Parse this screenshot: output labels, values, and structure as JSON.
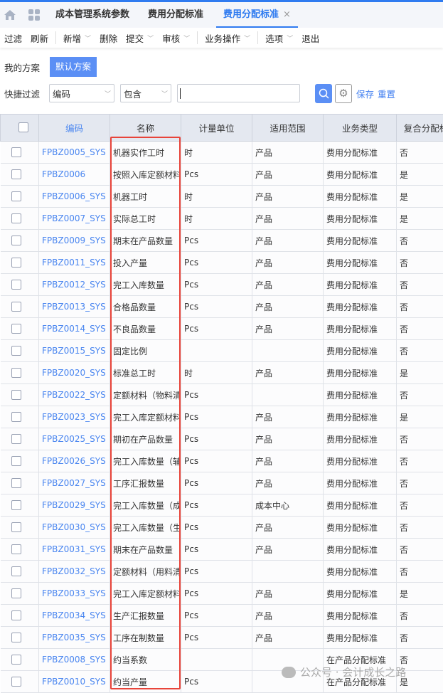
{
  "tabs": [
    {
      "label": "成本管理系统参数"
    },
    {
      "label": "费用分配标准"
    },
    {
      "label": "费用分配标准",
      "active": true,
      "close": "×"
    }
  ],
  "toolbar": [
    {
      "label": "过滤"
    },
    {
      "label": "刷新",
      "sep": true
    },
    {
      "label": "新增",
      "dropdown": true
    },
    {
      "label": "删除"
    },
    {
      "label": "提交",
      "dropdown": true
    },
    {
      "label": "审核",
      "dropdown": true,
      "sep": true
    },
    {
      "label": "业务操作",
      "dropdown": true,
      "sep": true
    },
    {
      "label": "选项",
      "dropdown": true
    },
    {
      "label": "退出"
    }
  ],
  "scheme": {
    "label": "我的方案",
    "default_button": "默认方案"
  },
  "filter": {
    "label": "快捷过滤",
    "field": "编码",
    "operator": "包含",
    "value": "",
    "save": "保存",
    "reset": "重置"
  },
  "table": {
    "headers": [
      "编码",
      "名称",
      "计量单位",
      "适用范围",
      "业务类型",
      "复合分配标"
    ],
    "rows": [
      [
        "FPBZ0005_SYS",
        "机器实作工时",
        "时",
        "产品",
        "费用分配标准",
        "否"
      ],
      [
        "FPBZ0006",
        "按照入库定额材料",
        "Pcs",
        "产品",
        "费用分配标准",
        "是"
      ],
      [
        "FPBZ0006_SYS",
        "机器工时",
        "时",
        "产品",
        "费用分配标准",
        "是"
      ],
      [
        "FPBZ0007_SYS",
        "实际总工时",
        "时",
        "产品",
        "费用分配标准",
        "是"
      ],
      [
        "FPBZ0009_SYS",
        "期末在产品数量",
        "Pcs",
        "产品",
        "费用分配标准",
        "否"
      ],
      [
        "FPBZ0011_SYS",
        "投入产量",
        "Pcs",
        "产品",
        "费用分配标准",
        "否"
      ],
      [
        "FPBZ0012_SYS",
        "完工入库数量",
        "Pcs",
        "产品",
        "费用分配标准",
        "否"
      ],
      [
        "FPBZ0013_SYS",
        "合格品数量",
        "Pcs",
        "产品",
        "费用分配标准",
        "否"
      ],
      [
        "FPBZ0014_SYS",
        "不良品数量",
        "Pcs",
        "产品",
        "费用分配标准",
        "否"
      ],
      [
        "FPBZ0015_SYS",
        "固定比例",
        "",
        "",
        "费用分配标准",
        "否"
      ],
      [
        "FPBZ0020_SYS",
        "标准总工时",
        "时",
        "产品",
        "费用分配标准",
        "是"
      ],
      [
        "FPBZ0022_SYS",
        "定额材料（物料清",
        "Pcs",
        "",
        "费用分配标准",
        "否"
      ],
      [
        "FPBZ0023_SYS",
        "完工入库定额材料",
        "Pcs",
        "产品",
        "费用分配标准",
        "是"
      ],
      [
        "FPBZ0025_SYS",
        "期初在产品数量",
        "Pcs",
        "产品",
        "费用分配标准",
        "否"
      ],
      [
        "FPBZ0026_SYS",
        "完工入库数量（辅",
        "Pcs",
        "产品",
        "费用分配标准",
        "否"
      ],
      [
        "FPBZ0027_SYS",
        "工序汇报数量",
        "Pcs",
        "产品",
        "费用分配标准",
        "否"
      ],
      [
        "FPBZ0029_SYS",
        "完工入库数量（成",
        "Pcs",
        "成本中心",
        "费用分配标准",
        "否"
      ],
      [
        "FPBZ0030_SYS",
        "完工入库数量（生",
        "Pcs",
        "产品",
        "费用分配标准",
        "否"
      ],
      [
        "FPBZ0031_SYS",
        "期末在产品数量",
        "Pcs",
        "产品",
        "费用分配标准",
        "否"
      ],
      [
        "FPBZ0032_SYS",
        "定额材料（用料清",
        "Pcs",
        "",
        "费用分配标准",
        "否"
      ],
      [
        "FPBZ0033_SYS",
        "完工入库定额材料",
        "Pcs",
        "产品",
        "费用分配标准",
        "是"
      ],
      [
        "FPBZ0034_SYS",
        "生产汇报数量",
        "Pcs",
        "产品",
        "费用分配标准",
        "否"
      ],
      [
        "FPBZ0035_SYS",
        "工序在制数量",
        "Pcs",
        "产品",
        "费用分配标准",
        "否"
      ],
      [
        "FPBZ0008_SYS",
        "约当系数",
        "",
        "",
        "在产品分配标准",
        "否"
      ],
      [
        "FPBZ0010_SYS",
        "约当产量",
        "Pcs",
        "",
        "在产品分配标准",
        "是"
      ]
    ]
  },
  "watermark": "公众号 · 会计成长之路",
  "colors": {
    "accent": "#2f7bf0",
    "highlight_box": "#e8443a"
  }
}
